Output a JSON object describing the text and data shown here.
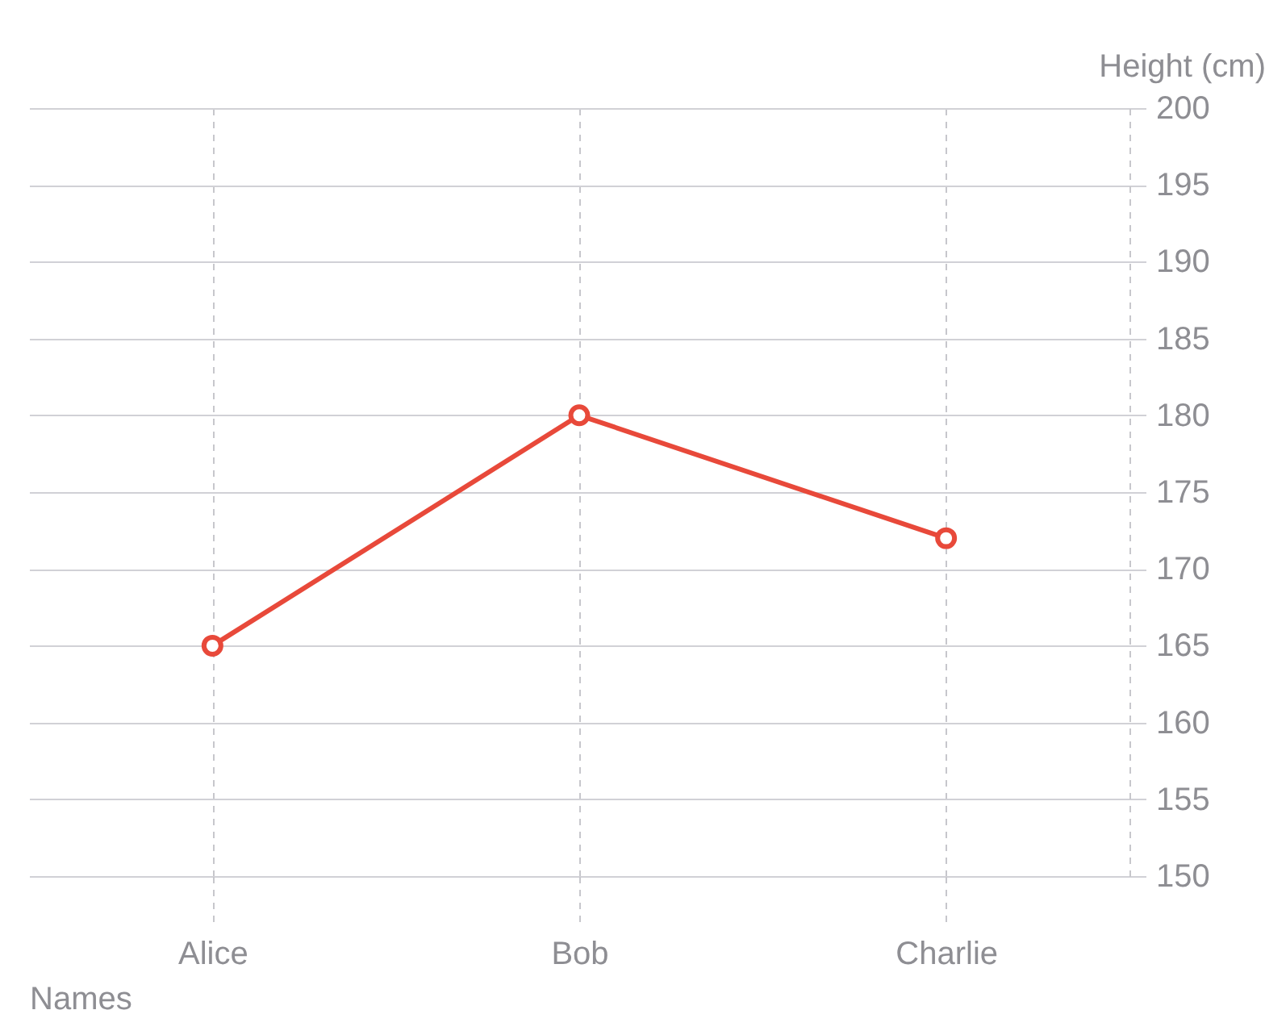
{
  "chart_data": {
    "type": "line",
    "xlabel": "Names",
    "ylabel": "Height (cm)",
    "categories": [
      "Alice",
      "Bob",
      "Charlie"
    ],
    "series": [
      {
        "color": "#e8493a",
        "values": [
          165,
          180,
          172
        ]
      }
    ],
    "ylim": [
      150,
      200
    ],
    "yticks": [
      150,
      155,
      160,
      165,
      170,
      175,
      180,
      185,
      190,
      195,
      200
    ],
    "grid": true,
    "marker": "circle",
    "line_style": "solid"
  }
}
